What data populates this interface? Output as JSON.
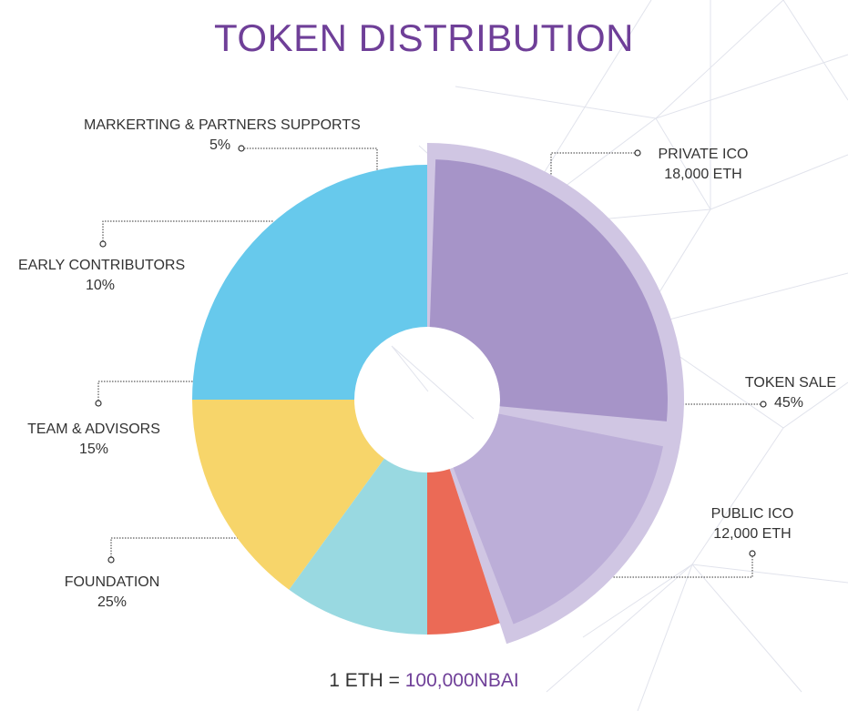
{
  "title": "TOKEN DISTRIBUTION",
  "chart_data": {
    "type": "pie",
    "variant": "donut",
    "title": "TOKEN DISTRIBUTION",
    "categories": [
      "TOKEN SALE",
      "FOUNDATION",
      "TEAM & ADVISORS",
      "EARLY CONTRIBUTORS",
      "MARKERTING & PARTNERS SUPPORTS"
    ],
    "values": [
      45,
      25,
      15,
      10,
      5
    ],
    "value_labels": [
      "45%",
      "25%",
      "15%",
      "10%",
      "5%"
    ],
    "colors": [
      "#a694c8",
      "#67c9ec",
      "#f7d56a",
      "#99d9e1",
      "#eb6a56"
    ],
    "token_sale_breakdown": [
      {
        "label": "PRIVATE ICO",
        "value": "18,000 ETH",
        "share_of_token_sale": 0.6,
        "color": "#a694c8"
      },
      {
        "label": "PUBLIC ICO",
        "value": "12,000 ETH",
        "share_of_token_sale": 0.4,
        "color": "#bcaed8"
      }
    ],
    "highlight_color": "#d0c6e3",
    "legend": "none"
  },
  "footer": {
    "prefix": "1 ETH = ",
    "value": "100,000NBAI"
  }
}
